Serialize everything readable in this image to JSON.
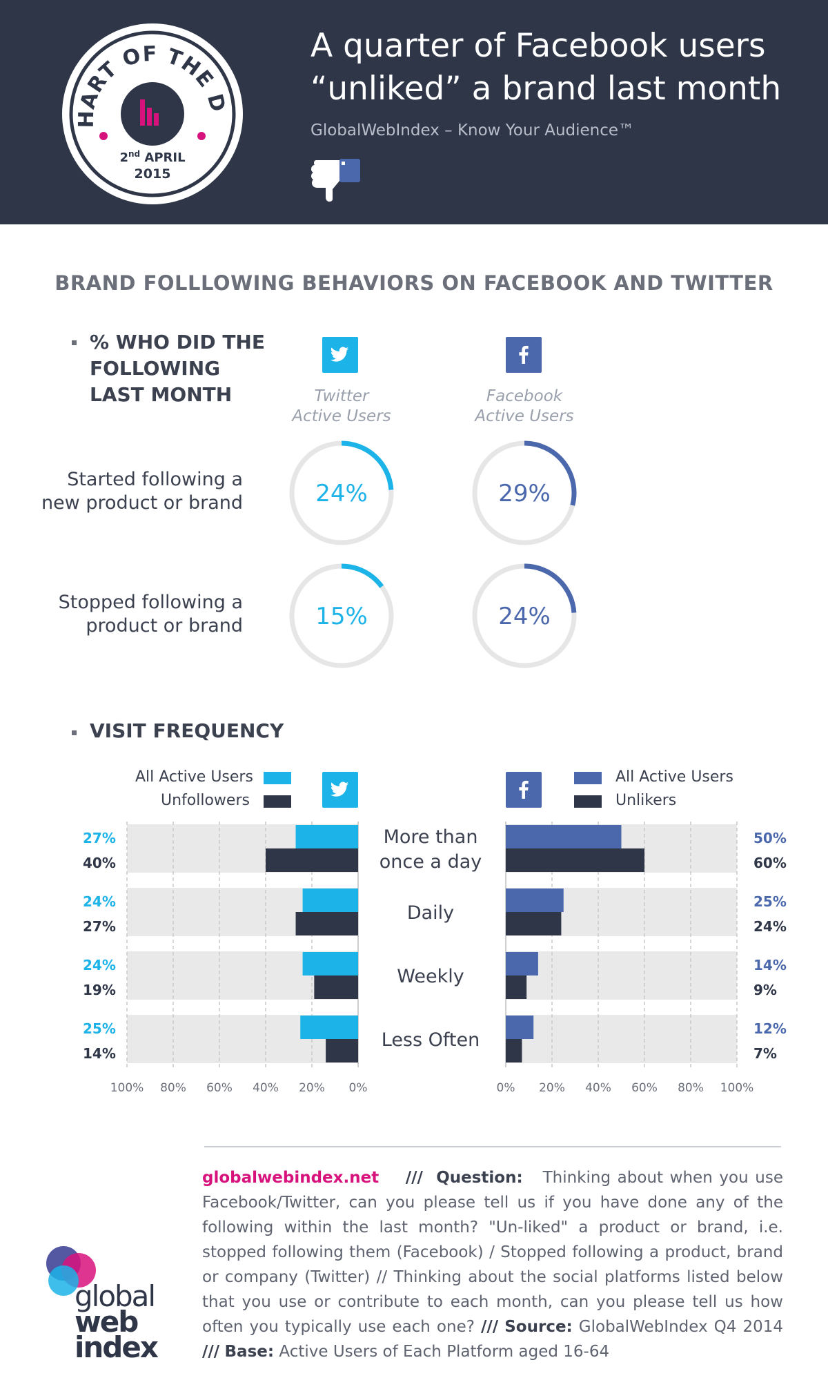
{
  "header": {
    "badge_top": "CHART OF THE DAY",
    "badge_day": "2",
    "badge_day_suffix": "nd",
    "badge_month": "APRIL",
    "badge_year": "2015",
    "title_line1": "A quarter of Facebook users",
    "title_line2": "“unliked” a brand last month",
    "subtitle": "GlobalWebIndex – Know Your Audience™",
    "thumb_icon": "thumbs-down-icon"
  },
  "section_title": "BRAND FOLLLOWING BEHAVIORS ON FACEBOOK AND TWITTER",
  "part1": {
    "heading_lines": [
      "% WHO DID THE",
      "FOLLOWING",
      "LAST MONTH"
    ],
    "twitter_label_lines": [
      "Twitter",
      "Active Users"
    ],
    "facebook_label_lines": [
      "Facebook",
      "Active Users"
    ],
    "rows": [
      {
        "label_lines": [
          "Started following a",
          "new product or brand"
        ],
        "twitter": "24%",
        "facebook": "29%"
      },
      {
        "label_lines": [
          "Stopped following a",
          "product or brand"
        ],
        "twitter": "15%",
        "facebook": "24%"
      }
    ]
  },
  "part2": {
    "heading": "VISIT FREQUENCY",
    "twitter_legend": [
      "All Active Users",
      "Unfollowers"
    ],
    "facebook_legend": [
      "All Active Users",
      "Unlikers"
    ],
    "twitter_ticks": [
      "100%",
      "80%",
      "60%",
      "40%",
      "20%",
      "0%"
    ],
    "facebook_ticks": [
      "0%",
      "20%",
      "40%",
      "60%",
      "80%",
      "100%"
    ]
  },
  "colors": {
    "header_bg": "#2e3648",
    "twitter": "#1cb3e8",
    "facebook": "#4b68ad",
    "dark": "#2e3648",
    "track": "#e6e6e6",
    "pink": "#d8127c"
  },
  "chart_data": [
    {
      "type": "pie",
      "title": "% WHO DID THE FOLLOWING LAST MONTH",
      "categories": [
        "Started following a new product or brand",
        "Stopped following a product or brand"
      ],
      "series": [
        {
          "name": "Twitter Active Users",
          "values": [
            24,
            15
          ]
        },
        {
          "name": "Facebook Active Users",
          "values": [
            29,
            24
          ]
        }
      ],
      "unit": "%"
    },
    {
      "type": "bar",
      "title": "VISIT FREQUENCY",
      "categories": [
        "More than once a day",
        "Daily",
        "Weekly",
        "Less Often"
      ],
      "category_label_lines": [
        [
          "More than",
          "once a day"
        ],
        [
          "Daily"
        ],
        [
          "Weekly"
        ],
        [
          "Less Often"
        ]
      ],
      "series": [
        {
          "name": "All Active Users",
          "platform": "Twitter",
          "values": [
            27,
            24,
            24,
            25
          ]
        },
        {
          "name": "Unfollowers",
          "platform": "Twitter",
          "values": [
            40,
            27,
            19,
            14
          ]
        },
        {
          "name": "All Active Users",
          "platform": "Facebook",
          "values": [
            50,
            25,
            14,
            12
          ]
        },
        {
          "name": "Unlikers",
          "platform": "Facebook",
          "values": [
            60,
            24,
            9,
            7
          ]
        }
      ],
      "xlim": [
        0,
        100
      ],
      "unit": "%"
    }
  ],
  "footer": {
    "site": "globalwebindex.net",
    "q_sep": "///",
    "q_label": "Question:",
    "question": "Thinking about when you use Facebook/Twitter, can you please tell us if you have done any of the following within the last month? \"Un-liked\" a product or brand, i.e. stopped following them (Facebook) / Stopped following a product, brand or company (Twitter) // Thinking about the social platforms listed below that you use or contribute to each month, can you please tell us how often you typically use each one?",
    "s_sep": "///",
    "source_label": "Source:",
    "source": "GlobalWebIndex Q4 2014",
    "b_sep": "///",
    "base_label": "Base:",
    "base": "Active Users of Each Platform aged 16-64"
  },
  "logo": {
    "line1": "global",
    "line2": "web",
    "line3": "index"
  }
}
